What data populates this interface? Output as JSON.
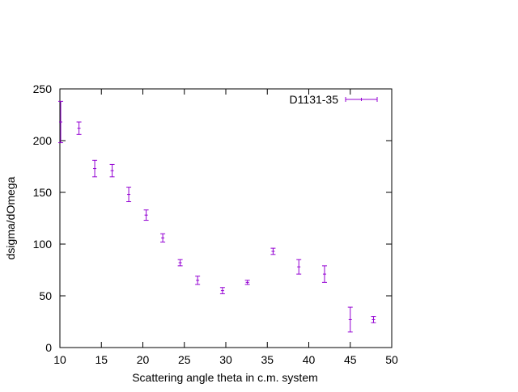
{
  "chart_data": {
    "type": "scatter",
    "title": "",
    "xlabel": "Scattering angle theta in c.m. system",
    "ylabel": "dsigma/dOmega",
    "xlim": [
      10,
      50
    ],
    "ylim": [
      0,
      250
    ],
    "xticks": [
      10,
      15,
      20,
      25,
      30,
      35,
      40,
      45,
      50
    ],
    "yticks": [
      0,
      50,
      100,
      150,
      200,
      250
    ],
    "grid": false,
    "legend_position": "top-right",
    "series": [
      {
        "name": "D1131-35",
        "color": "#9400d3",
        "style": "yerrorbars",
        "points": [
          {
            "x": 10.1,
            "y": 218,
            "err": 20
          },
          {
            "x": 12.3,
            "y": 212,
            "err": 6
          },
          {
            "x": 14.2,
            "y": 173,
            "err": 8
          },
          {
            "x": 16.3,
            "y": 171,
            "err": 6
          },
          {
            "x": 18.3,
            "y": 148,
            "err": 7
          },
          {
            "x": 20.4,
            "y": 128,
            "err": 5
          },
          {
            "x": 22.4,
            "y": 106,
            "err": 4
          },
          {
            "x": 24.5,
            "y": 82,
            "err": 3
          },
          {
            "x": 26.6,
            "y": 65,
            "err": 4
          },
          {
            "x": 29.6,
            "y": 55,
            "err": 3
          },
          {
            "x": 32.6,
            "y": 63,
            "err": 2
          },
          {
            "x": 35.7,
            "y": 93,
            "err": 3
          },
          {
            "x": 38.8,
            "y": 78,
            "err": 7
          },
          {
            "x": 41.9,
            "y": 71,
            "err": 8
          },
          {
            "x": 45.0,
            "y": 27,
            "err": 12
          },
          {
            "x": 47.8,
            "y": 27,
            "err": 3
          }
        ]
      }
    ]
  }
}
